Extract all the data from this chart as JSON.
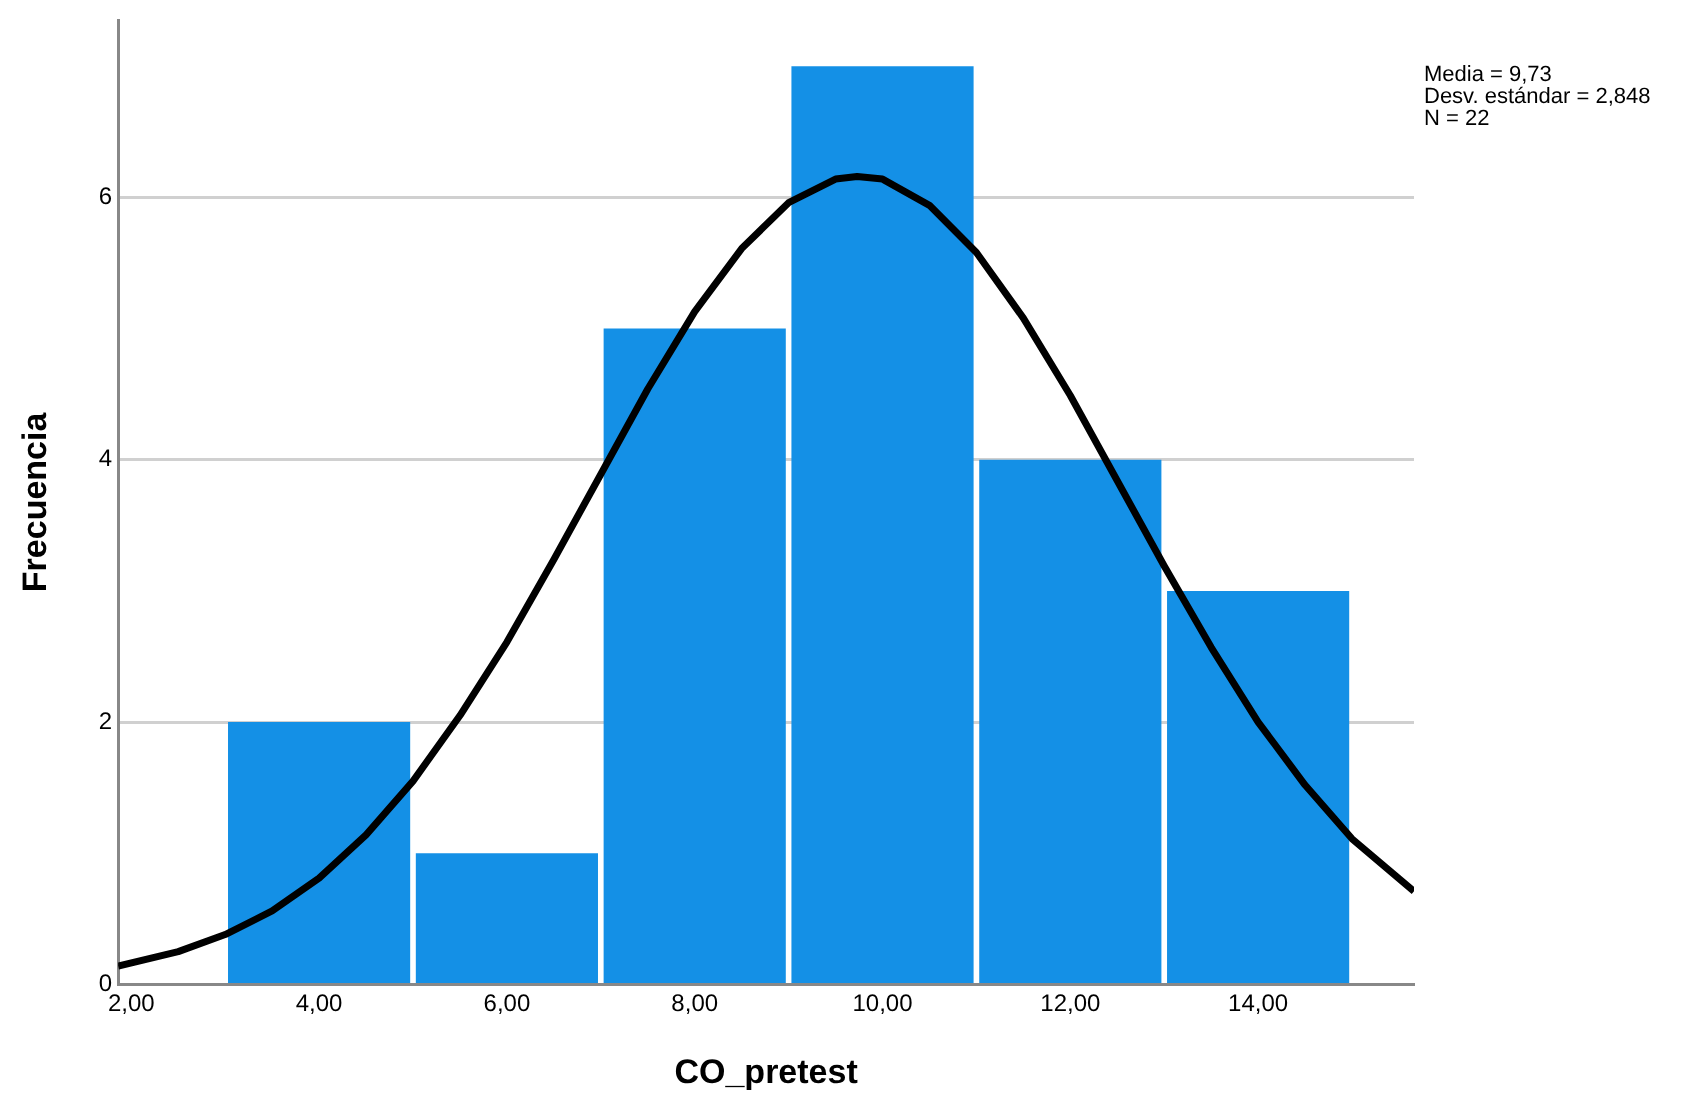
{
  "chart_data": {
    "type": "histogram",
    "xlabel": "CO_pretest",
    "ylabel": "Frecuencia",
    "bins": [
      3,
      5,
      7,
      9,
      11,
      13,
      15
    ],
    "values": [
      2,
      1,
      5,
      7,
      4,
      3
    ],
    "color": "#1490e6",
    "series": [
      {
        "type": "line",
        "color": "#000000",
        "x": [
          1.86,
          2.5,
          3,
          3.5,
          4,
          4.5,
          5,
          5.5,
          6,
          6.5,
          7,
          7.5,
          8,
          8.5,
          9,
          9.5,
          9.73,
          10,
          10.5,
          11,
          11.5,
          12,
          12.5,
          13,
          13.5,
          14,
          14.5,
          15,
          15.66
        ],
        "values": [
          0.14,
          0.25,
          0.38,
          0.56,
          0.81,
          1.14,
          1.55,
          2.05,
          2.61,
          3.24,
          3.89,
          4.54,
          5.13,
          5.61,
          5.96,
          6.14,
          6.16,
          6.14,
          5.94,
          5.58,
          5.08,
          4.49,
          3.84,
          3.19,
          2.57,
          2.0,
          1.52,
          1.11,
          0.71
        ]
      }
    ],
    "xlim": [
      1.86,
      15.66
    ],
    "ylim": [
      0,
      7.35
    ],
    "xticks": [
      {
        "value": 2,
        "label": "2,00"
      },
      {
        "value": 4,
        "label": "4,00"
      },
      {
        "value": 6,
        "label": "6,00"
      },
      {
        "value": 8,
        "label": "8,00"
      },
      {
        "value": 10,
        "label": "10,00"
      },
      {
        "value": 12,
        "label": "12,00"
      },
      {
        "value": 14,
        "label": "14,00"
      }
    ],
    "yticks": [
      0,
      2,
      4,
      6
    ],
    "grid": "y",
    "marker": "none",
    "line_style": "solid",
    "annotations": [
      "Media = 9,73",
      "Desv. estándar = 2,848",
      "N = 22"
    ]
  }
}
